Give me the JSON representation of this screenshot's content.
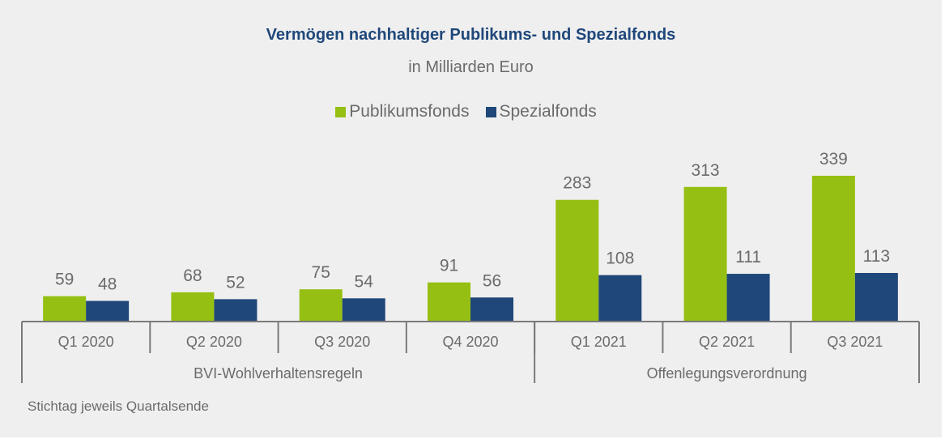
{
  "chart_data": {
    "type": "bar",
    "title": "Vermögen nachhaltiger Publikums- und Spezialfonds",
    "subtitle": "in Milliarden Euro",
    "xlabel": "",
    "ylabel": "",
    "ylim": [
      0,
      360
    ],
    "grid": false,
    "legend_position": "top-center",
    "categories": [
      "Q1 2020",
      "Q2 2020",
      "Q3 2020",
      "Q4 2020",
      "Q1 2021",
      "Q2 2021",
      "Q3 2021"
    ],
    "series": [
      {
        "name": "Publikumsfonds",
        "color": "#95bf12",
        "values": [
          59,
          68,
          75,
          91,
          283,
          313,
          339
        ]
      },
      {
        "name": "Spezialfonds",
        "color": "#1f477a",
        "values": [
          48,
          52,
          54,
          56,
          108,
          111,
          113
        ]
      }
    ],
    "category_groups": [
      {
        "label": "BVI-Wohlverhaltensregeln",
        "categories": [
          "Q1 2020",
          "Q2 2020",
          "Q3 2020",
          "Q4 2020"
        ]
      },
      {
        "label": "Offenlegungsverordnung",
        "categories": [
          "Q1 2021",
          "Q2 2021",
          "Q3 2021"
        ]
      }
    ],
    "footnote": "Stichtag jeweils Quartalsende"
  },
  "colors": {
    "background": "#efefef",
    "title": "#1f477a",
    "text": "#6b6b6b",
    "axis": "#7a7a7a"
  }
}
